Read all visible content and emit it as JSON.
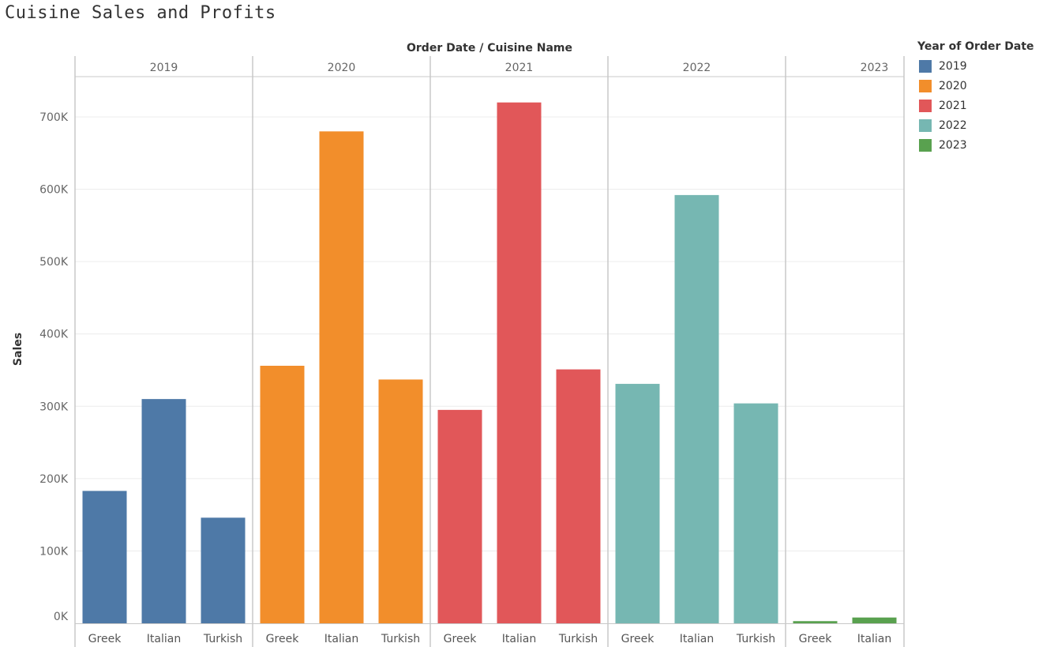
{
  "title": "Cuisine Sales and Profits",
  "chart_data": {
    "type": "bar",
    "header_title": "Order Date  /  Cuisine Name",
    "ylabel": "Sales",
    "ylim": [
      0,
      750000
    ],
    "yticks": [
      0,
      100000,
      200000,
      300000,
      400000,
      500000,
      600000,
      700000
    ],
    "ytick_labels": [
      "0K",
      "100K",
      "200K",
      "300K",
      "400K",
      "500K",
      "600K",
      "700K"
    ],
    "grid": true,
    "legend_position": "right",
    "groups": [
      {
        "year": "2019",
        "color": "#4e79a7",
        "bars": [
          {
            "category": "Greek",
            "value": 183000
          },
          {
            "category": "Italian",
            "value": 310000
          },
          {
            "category": "Turkish",
            "value": 146000
          }
        ]
      },
      {
        "year": "2020",
        "color": "#f28e2b",
        "bars": [
          {
            "category": "Greek",
            "value": 356000
          },
          {
            "category": "Italian",
            "value": 680000
          },
          {
            "category": "Turkish",
            "value": 337000
          }
        ]
      },
      {
        "year": "2021",
        "color": "#e15759",
        "bars": [
          {
            "category": "Greek",
            "value": 295000
          },
          {
            "category": "Italian",
            "value": 720000
          },
          {
            "category": "Turkish",
            "value": 351000
          }
        ]
      },
      {
        "year": "2022",
        "color": "#76b7b2",
        "bars": [
          {
            "category": "Greek",
            "value": 331000
          },
          {
            "category": "Italian",
            "value": 592000
          },
          {
            "category": "Turkish",
            "value": 304000
          }
        ]
      },
      {
        "year": "2023",
        "color": "#59a14f",
        "bars": [
          {
            "category": "Greek",
            "value": 3000
          },
          {
            "category": "Italian",
            "value": 8000
          }
        ]
      }
    ]
  },
  "legend": {
    "title": "Year of Order Date",
    "items": [
      {
        "label": "2019",
        "color": "#4e79a7"
      },
      {
        "label": "2020",
        "color": "#f28e2b"
      },
      {
        "label": "2021",
        "color": "#e15759"
      },
      {
        "label": "2022",
        "color": "#76b7b2"
      },
      {
        "label": "2023",
        "color": "#59a14f"
      }
    ]
  }
}
